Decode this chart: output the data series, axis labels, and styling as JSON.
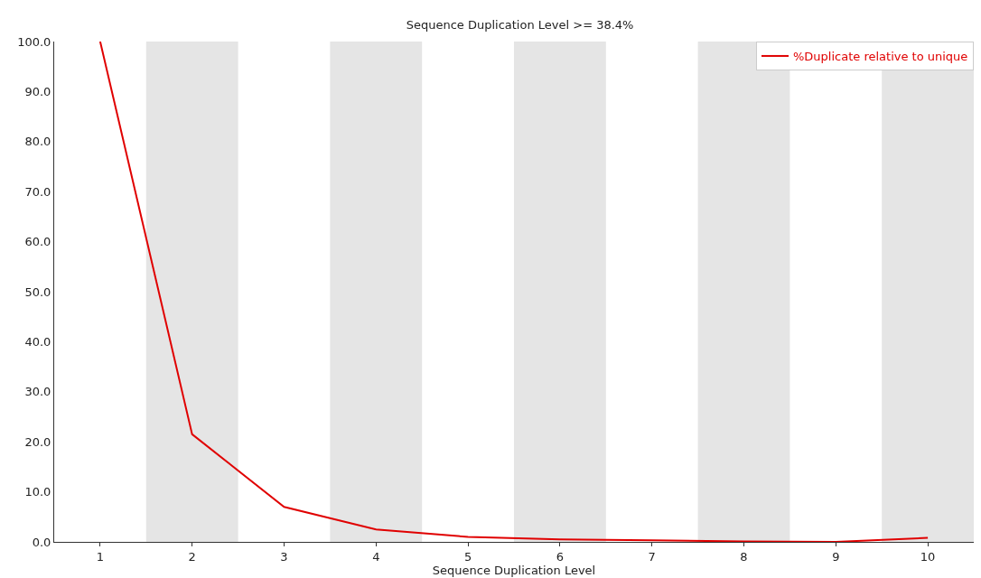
{
  "chart_data": {
    "type": "line",
    "title": "Sequence Duplication Level >= 38.4%",
    "xlabel": "Sequence Duplication Level",
    "x": [
      1,
      2,
      3,
      4,
      5,
      6,
      7,
      8,
      9,
      10
    ],
    "series": [
      {
        "name": "%Duplicate relative to unique",
        "color": "#e00000",
        "values": [
          100,
          21.5,
          7,
          2.5,
          1,
          0.5,
          0.3,
          0.1,
          0,
          0.8
        ]
      }
    ],
    "xlim": [
      0.5,
      10.5
    ],
    "xticks": [
      1,
      2,
      3,
      4,
      5,
      6,
      7,
      8,
      9,
      10
    ],
    "ylim": [
      0,
      100
    ],
    "yticks": [
      {
        "value": 0,
        "label": "0.0"
      },
      {
        "value": 10,
        "label": "10.0"
      },
      {
        "value": 20,
        "label": "20.0"
      },
      {
        "value": 30,
        "label": "30.0"
      },
      {
        "value": 40,
        "label": "40.0"
      },
      {
        "value": 50,
        "label": "50.0"
      },
      {
        "value": 60,
        "label": "60.0"
      },
      {
        "value": 70,
        "label": "70.0"
      },
      {
        "value": 80,
        "label": "80.0"
      },
      {
        "value": 90,
        "label": "90.0"
      },
      {
        "value": 100,
        "label": "100.0"
      }
    ],
    "bands": [
      {
        "axis": "x",
        "from": 1.5,
        "to": 2.5,
        "color": "#e5e5e5"
      },
      {
        "axis": "x",
        "from": 3.5,
        "to": 4.5,
        "color": "#e5e5e5"
      },
      {
        "axis": "x",
        "from": 5.5,
        "to": 6.5,
        "color": "#e5e5e5"
      },
      {
        "axis": "x",
        "from": 7.5,
        "to": 8.5,
        "color": "#e5e5e5"
      },
      {
        "axis": "x",
        "from": 9.5,
        "to": 10.5,
        "color": "#e5e5e5"
      }
    ],
    "grid": false,
    "legend": "top right",
    "marker": "none",
    "line_style": "solid"
  }
}
